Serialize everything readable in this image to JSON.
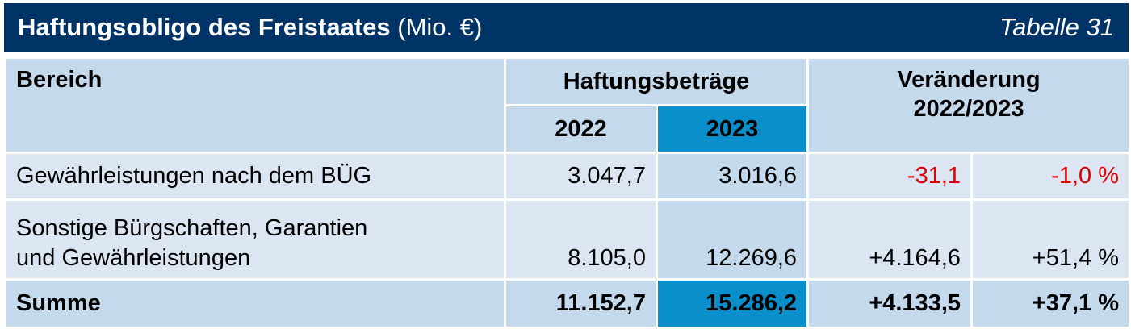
{
  "title": {
    "main": "Haftungsobligo des Freistaates",
    "unit": "(Mio. €)",
    "table_no": "Tabelle 31"
  },
  "header": {
    "bereich": "Bereich",
    "haftungsbetraege": "Haftungsbeträge",
    "year_a": "2022",
    "year_b": "2023",
    "veraenderung_line1": "Veränderung",
    "veraenderung_line2": "2022/2023"
  },
  "rows": [
    {
      "label": "Gewährleistungen nach dem BÜG",
      "v2022": "3.047,7",
      "v2023": "3.016,6",
      "delta_abs": "-31,1",
      "delta_pct": "-1,0 %"
    },
    {
      "label_line1": "Sonstige Bürgschaften, Garantien",
      "label_line2": "und Gewährleistungen",
      "v2022": "8.105,0",
      "v2023": "12.269,6",
      "delta_abs": "+4.164,6",
      "delta_pct": "+51,4 %"
    }
  ],
  "total": {
    "label": "Summe",
    "v2022": "11.152,7",
    "v2023": "15.286,2",
    "delta_abs": "+4.133,5",
    "delta_pct": "+37,1 %"
  },
  "colors": {
    "title_bg": "#003366",
    "header_bg": "#c5d9ec",
    "row_bg": "#dce6f2",
    "highlight": "#0a8fcb",
    "negative": "#e10000"
  }
}
